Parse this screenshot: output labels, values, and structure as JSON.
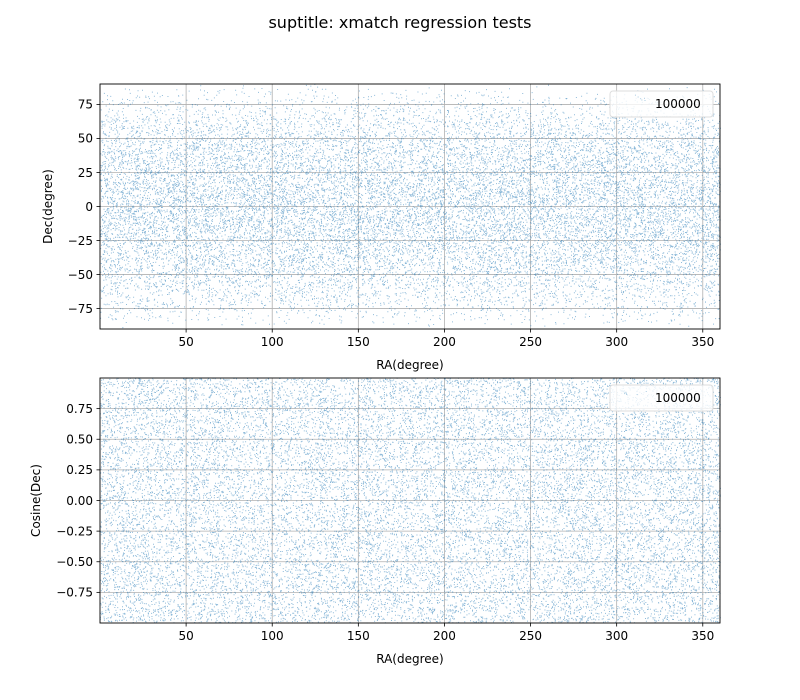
{
  "figure": {
    "suptitle": "suptitle: xmatch regression tests",
    "point_color": "#1f77b4"
  },
  "chart_data": [
    {
      "type": "scatter",
      "title": "",
      "xlabel": "RA(degree)",
      "ylabel": "Dec(degree)",
      "xlim": [
        0,
        360
      ],
      "ylim": [
        -90,
        90
      ],
      "xticks": [
        50,
        100,
        150,
        200,
        250,
        300,
        350
      ],
      "yticks": [
        -75,
        -50,
        -25,
        0,
        25,
        50,
        75
      ],
      "xtick_labels": [
        "50",
        "100",
        "150",
        "200",
        "250",
        "300",
        "350"
      ],
      "ytick_labels": [
        "−75",
        "−50",
        "−25",
        "0",
        "25",
        "50",
        "75"
      ],
      "grid": true,
      "legend_position": "upper right",
      "series": [
        {
          "name": "100000",
          "count": 100000,
          "distribution": "uniform on sphere: RA uniform in [0, 360], sin(Dec) uniform in [-1, 1]",
          "color": "#1f77b4"
        }
      ]
    },
    {
      "type": "scatter",
      "title": "",
      "xlabel": "RA(degree)",
      "ylabel": "Cosine(Dec)",
      "xlim": [
        0,
        360
      ],
      "ylim": [
        -1,
        1
      ],
      "xticks": [
        50,
        100,
        150,
        200,
        250,
        300,
        350
      ],
      "yticks": [
        -0.75,
        -0.5,
        -0.25,
        0,
        0.25,
        0.5,
        0.75
      ],
      "xtick_labels": [
        "50",
        "100",
        "150",
        "200",
        "250",
        "300",
        "350"
      ],
      "ytick_labels": [
        "−0.75",
        "−0.50",
        "−0.25",
        "0.00",
        "0.25",
        "0.50",
        "0.75"
      ],
      "grid": true,
      "legend_position": "upper right",
      "series": [
        {
          "name": "100000",
          "count": 100000,
          "distribution": "uniform: RA uniform in [0, 360], value uniform in [-1, 1]",
          "color": "#1f77b4"
        }
      ]
    }
  ]
}
